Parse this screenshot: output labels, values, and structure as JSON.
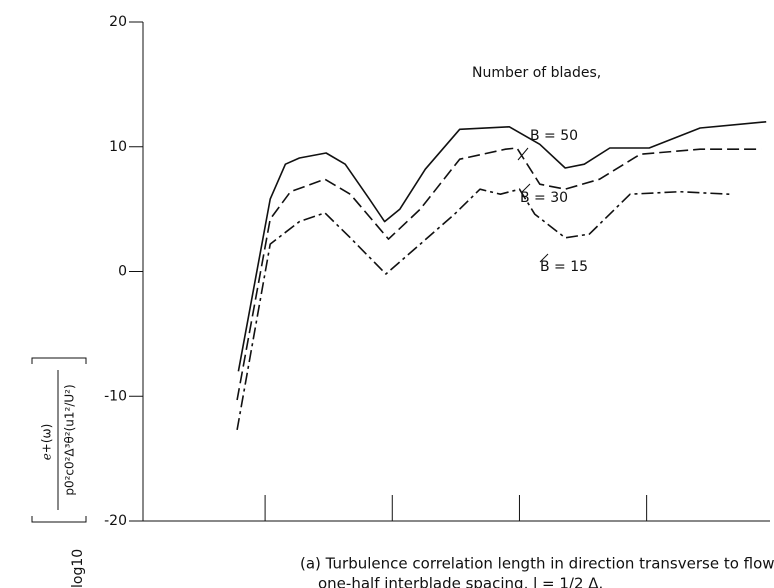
{
  "chart_data": {
    "type": "line",
    "legend_title": "Number of blades,",
    "ylabel": {
      "function": "log10",
      "numerator": "ℯ+(ω)",
      "denominator": "p0²c0²Δ³θ²(u1²/U²)"
    },
    "caption": [
      "(a) Turbulence correlation length in direction transverse to flow equal to",
      "one-half interblade spacing, l = 1/2 Δ."
    ],
    "xlim": [
      0.04,
      4.97
    ],
    "xticks": [
      1,
      2,
      3,
      4
    ],
    "ylim": [
      -20,
      20
    ],
    "yticks": [
      -20,
      -10,
      0,
      10,
      20
    ],
    "series": [
      {
        "name": "B = 50",
        "color": "#111111",
        "dash": "solid",
        "x": [
          0.79,
          1.04,
          1.16,
          1.27,
          1.48,
          1.63,
          1.82,
          1.94,
          2.06,
          2.26,
          2.53,
          2.92,
          3.16,
          3.36,
          3.51,
          3.71,
          4.02,
          4.42,
          4.94
        ],
        "values": [
          -8.0,
          5.8,
          8.6,
          9.1,
          9.5,
          8.6,
          5.8,
          4.0,
          5.0,
          8.2,
          11.4,
          11.6,
          10.2,
          8.3,
          8.6,
          9.9,
          9.9,
          11.5,
          12.0
        ]
      },
      {
        "name": "B = 30",
        "color": "#111111",
        "dash": "dashed",
        "x": [
          0.78,
          1.04,
          1.2,
          1.47,
          1.67,
          1.97,
          2.22,
          2.53,
          2.89,
          2.98,
          3.16,
          3.36,
          3.63,
          3.95,
          4.42,
          4.9
        ],
        "values": [
          -10.3,
          4.2,
          6.4,
          7.4,
          6.2,
          2.6,
          5.0,
          9.0,
          9.8,
          9.9,
          7.0,
          6.6,
          7.4,
          9.4,
          9.8,
          9.8
        ]
      },
      {
        "name": "B = 15",
        "color": "#111111",
        "dash": "dashdot",
        "x": [
          0.78,
          1.04,
          1.27,
          1.47,
          1.67,
          1.95,
          2.22,
          2.49,
          2.69,
          2.85,
          3.0,
          3.12,
          3.36,
          3.55,
          3.87,
          4.26,
          4.65
        ],
        "values": [
          -12.7,
          2.2,
          4.0,
          4.7,
          2.7,
          -0.2,
          2.2,
          4.6,
          6.6,
          6.2,
          6.6,
          4.6,
          2.7,
          3.0,
          6.2,
          6.4,
          6.2
        ]
      }
    ]
  }
}
